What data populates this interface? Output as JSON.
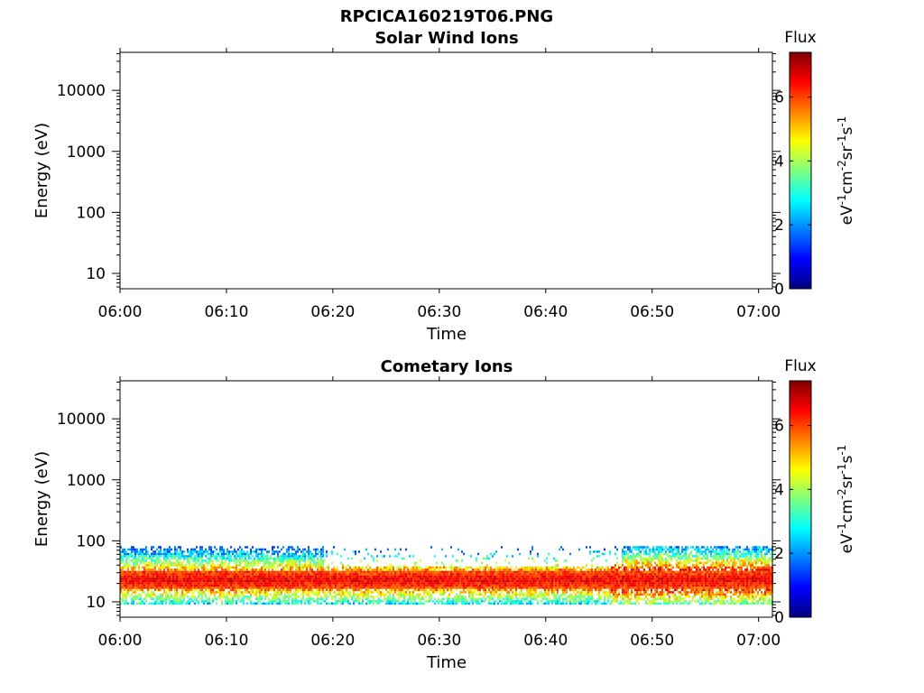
{
  "figure": {
    "title": "RPCICA160219T06.PNG"
  },
  "colors": {
    "jet": [
      "#00007f",
      "#0000ff",
      "#007fff",
      "#00ffff",
      "#7fff7f",
      "#ffff00",
      "#ff7f00",
      "#ff0000",
      "#7f0000"
    ]
  },
  "chart_data": [
    {
      "type": "heatmap",
      "title": "Solar Wind Ions",
      "xlabel": "Time",
      "ylabel": "Energy (eV)",
      "x_ticks": [
        "06:00",
        "06:10",
        "06:20",
        "06:30",
        "06:40",
        "06:50",
        "07:00"
      ],
      "x_range_minutes": [
        0,
        61.3
      ],
      "y_scale": "log",
      "y_ticks": [
        "10",
        "100",
        "1000",
        "10000"
      ],
      "y_range": [
        5.6,
        42000
      ],
      "colorbar": {
        "label_top": "Flux",
        "label_side": "eV-1cm-2sr-1s-1",
        "ticks": [
          "0",
          "2",
          "4",
          "6"
        ],
        "range": [
          0,
          7.4
        ]
      },
      "data": []
    },
    {
      "type": "heatmap",
      "title": "Cometary Ions",
      "xlabel": "Time",
      "ylabel": "Energy (eV)",
      "x_ticks": [
        "06:00",
        "06:10",
        "06:20",
        "06:30",
        "06:40",
        "06:50",
        "07:00"
      ],
      "x_range_minutes": [
        0,
        61.3
      ],
      "y_scale": "log",
      "y_ticks": [
        "10",
        "100",
        "1000",
        "10000"
      ],
      "y_range": [
        5.6,
        42000
      ],
      "colorbar": {
        "label_top": "Flux",
        "label_side": "eV-1cm-2sr-1s-1",
        "ticks": [
          "0",
          "2",
          "4",
          "6"
        ],
        "range": [
          0,
          7.4
        ]
      },
      "flux_band": {
        "energy_range_eV": [
          9,
          82
        ],
        "peak_energy_eV": [
          16,
          33
        ],
        "peak_flux": 6.6,
        "edge_flux": 4.0
      }
    }
  ]
}
